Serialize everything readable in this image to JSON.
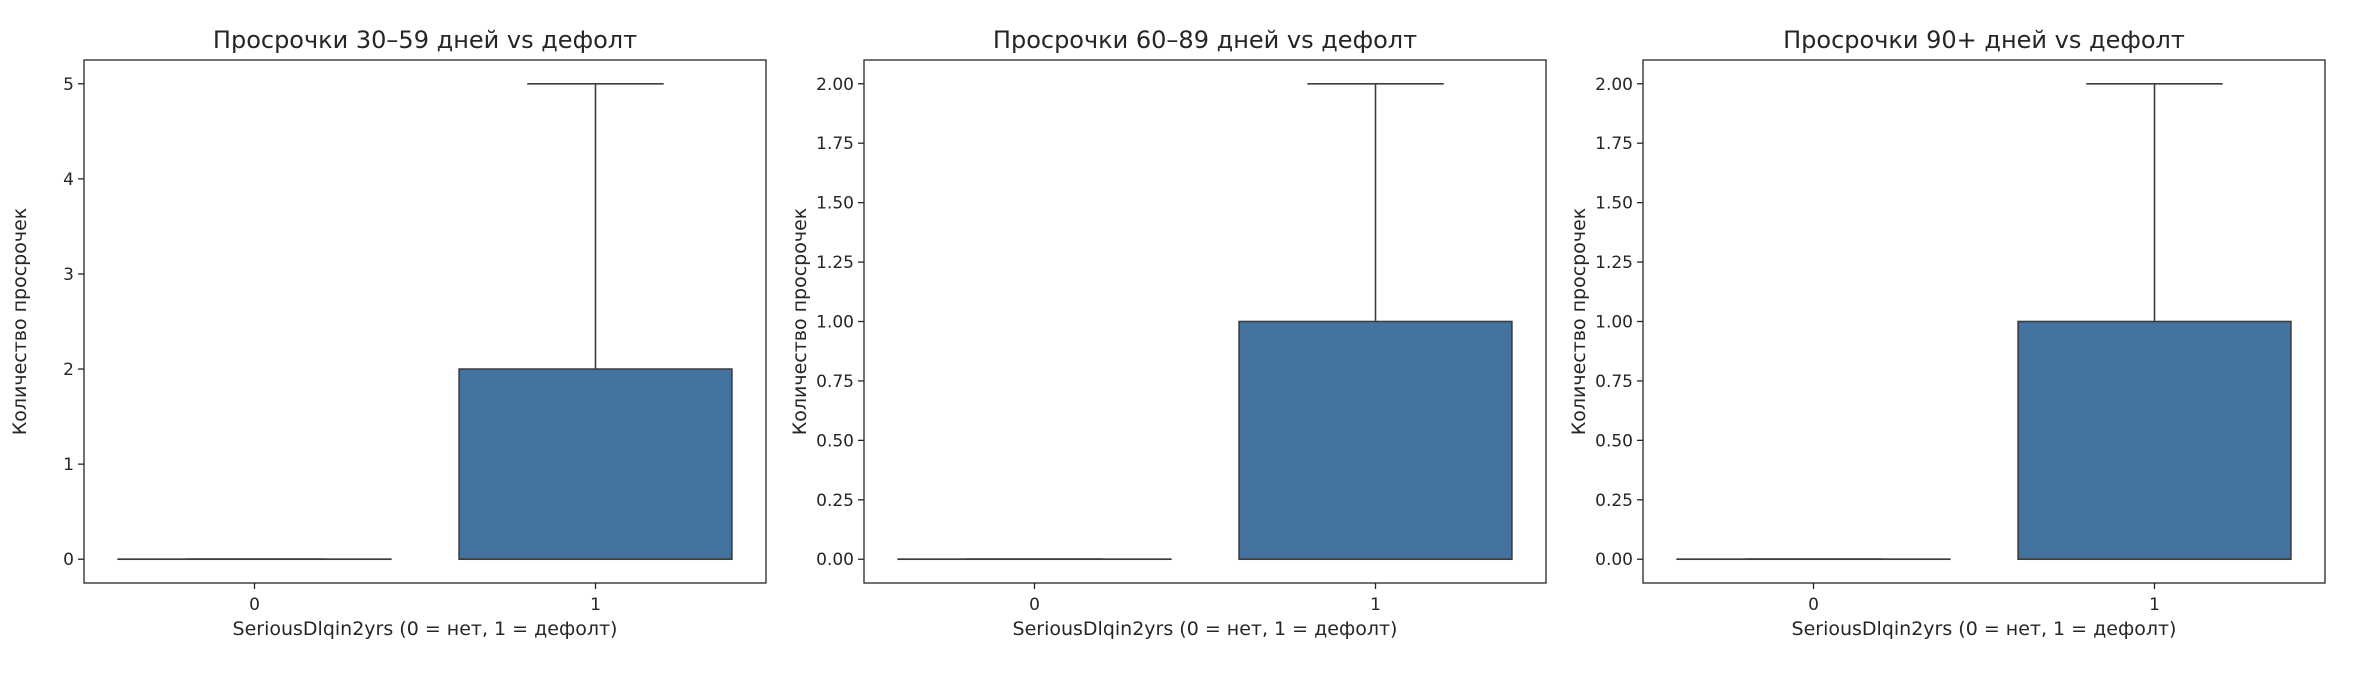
{
  "chart_data": [
    {
      "type": "box",
      "title": "Просрочки 30–59 дней vs дефолт",
      "xlabel": "SeriousDlqin2yrs (0 = нет, 1 = дефолт)",
      "ylabel": "Количество просрочек",
      "categories": [
        "0",
        "1"
      ],
      "ylim": [
        -0.25,
        5.25
      ],
      "yticks": [
        0,
        1,
        2,
        3,
        4,
        5
      ],
      "ytick_labels": [
        "0",
        "1",
        "2",
        "3",
        "4",
        "5"
      ],
      "boxes": [
        {
          "category": "0",
          "whisker_low": 0,
          "q1": 0,
          "median": 0,
          "q3": 0,
          "whisker_high": 0
        },
        {
          "category": "1",
          "whisker_low": 0,
          "q1": 0,
          "median": 0,
          "q3": 2,
          "whisker_high": 5
        }
      ],
      "color": "#4573a0",
      "grid": false
    },
    {
      "type": "box",
      "title": "Просрочки 60–89 дней vs дефолт",
      "xlabel": "SeriousDlqin2yrs (0 = нет, 1 = дефолт)",
      "ylabel": "Количество просрочек",
      "categories": [
        "0",
        "1"
      ],
      "ylim": [
        -0.1,
        2.1
      ],
      "yticks": [
        0,
        0.25,
        0.5,
        0.75,
        1,
        1.25,
        1.5,
        1.75,
        2
      ],
      "ytick_labels": [
        "0.00",
        "0.25",
        "0.50",
        "0.75",
        "1.00",
        "1.25",
        "1.50",
        "1.75",
        "2.00"
      ],
      "boxes": [
        {
          "category": "0",
          "whisker_low": 0,
          "q1": 0,
          "median": 0,
          "q3": 0,
          "whisker_high": 0
        },
        {
          "category": "1",
          "whisker_low": 0,
          "q1": 0,
          "median": 0,
          "q3": 1,
          "whisker_high": 2
        }
      ],
      "color": "#4573a0",
      "grid": false
    },
    {
      "type": "box",
      "title": "Просрочки 90+ дней vs дефолт",
      "xlabel": "SeriousDlqin2yrs (0 = нет, 1 = дефолт)",
      "ylabel": "Количество просрочек",
      "categories": [
        "0",
        "1"
      ],
      "ylim": [
        -0.1,
        2.1
      ],
      "yticks": [
        0,
        0.25,
        0.5,
        0.75,
        1,
        1.25,
        1.5,
        1.75,
        2
      ],
      "ytick_labels": [
        "0.00",
        "0.25",
        "0.50",
        "0.75",
        "1.00",
        "1.25",
        "1.50",
        "1.75",
        "2.00"
      ],
      "boxes": [
        {
          "category": "0",
          "whisker_low": 0,
          "q1": 0,
          "median": 0,
          "q3": 0,
          "whisker_high": 0
        },
        {
          "category": "1",
          "whisker_low": 0,
          "q1": 0,
          "median": 0,
          "q3": 1,
          "whisker_high": 2
        }
      ],
      "color": "#4573a0",
      "grid": false
    }
  ]
}
